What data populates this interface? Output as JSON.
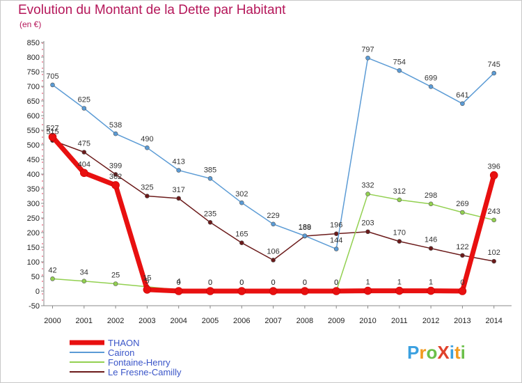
{
  "title": "Evolution du Montant de la Dette par Habitant",
  "unit": "(en €)",
  "logo": {
    "text": "ProXiti",
    "colors": [
      "#3aa0e0",
      "#f29a1f",
      "#6cc04a",
      "#e0412b"
    ]
  },
  "chart_data": {
    "type": "line",
    "x": [
      2000,
      2001,
      2002,
      2003,
      2004,
      2005,
      2006,
      2007,
      2008,
      2009,
      2010,
      2011,
      2012,
      2013,
      2014
    ],
    "ylim": [
      -50,
      850
    ],
    "yticks": [
      -50,
      0,
      50,
      100,
      150,
      200,
      250,
      300,
      350,
      400,
      450,
      500,
      550,
      600,
      650,
      700,
      750,
      800,
      850
    ],
    "grid": false,
    "legend_position": "bottom-left",
    "series": [
      {
        "name": "THAON",
        "color": "#e81010",
        "width": 7,
        "values": [
          527,
          404,
          362,
          5,
          0,
          0,
          0,
          0,
          0,
          0,
          1,
          1,
          1,
          0,
          396
        ],
        "labels": [
          "527",
          "404",
          "362",
          "5",
          "0",
          "0",
          "0",
          "0",
          "0",
          "0",
          "1",
          "1",
          "1",
          "0",
          "396"
        ]
      },
      {
        "name": "Cairon",
        "color": "#5b9bd5",
        "width": 1.5,
        "values": [
          705,
          625,
          538,
          490,
          413,
          385,
          302,
          229,
          189,
          144,
          797,
          754,
          699,
          641,
          745
        ],
        "labels": [
          "705",
          "625",
          "538",
          "490",
          "413",
          "385",
          "302",
          "229",
          "189",
          "144",
          "797",
          "754",
          "699",
          "641",
          "745"
        ]
      },
      {
        "name": "Fontaine-Henry",
        "color": "#92d050",
        "width": 1.5,
        "values": [
          42,
          34,
          25,
          15,
          4,
          0,
          0,
          0,
          0,
          0,
          332,
          312,
          298,
          269,
          243
        ],
        "labels": [
          "42",
          "34",
          "25",
          "15",
          "4",
          "0",
          "0",
          "0",
          "0",
          "0",
          "332",
          "312",
          "298",
          "269",
          "243"
        ]
      },
      {
        "name": "Le Fresne-Camilly",
        "color": "#6b1a1a",
        "width": 1.5,
        "values": [
          515,
          475,
          399,
          325,
          317,
          235,
          165,
          106,
          188,
          196,
          203,
          170,
          146,
          122,
          102
        ],
        "labels": [
          "515",
          "475",
          "399",
          "325",
          "317",
          "235",
          "165",
          "106",
          "188",
          "196",
          "203",
          "170",
          "146",
          "122",
          "102"
        ]
      }
    ]
  }
}
